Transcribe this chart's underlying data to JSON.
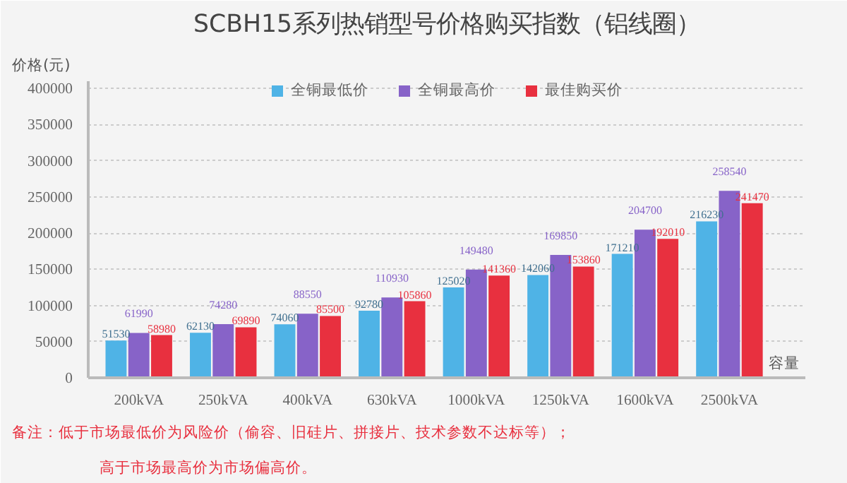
{
  "chart_data": {
    "type": "bar",
    "title": "SCBH15系列热销型号价格购买指数（铝线圈）",
    "xlabel": "容量",
    "ylabel": "价格(元)",
    "categories": [
      "200kVA",
      "250kVA",
      "400kVA",
      "630kVA",
      "1000kVA",
      "1250kVA",
      "1600kVA",
      "2500kVA"
    ],
    "series": [
      {
        "name": "全铜最低价",
        "color": "#4fb3e6",
        "values": [
          51530,
          62130,
          74060,
          92780,
          125020,
          142060,
          171210,
          216230
        ]
      },
      {
        "name": "全铜最高价",
        "color": "#8763c8",
        "values": [
          61990,
          74280,
          88550,
          110930,
          149480,
          169850,
          204700,
          258540
        ]
      },
      {
        "name": "最佳购买价",
        "color": "#e8303f",
        "values": [
          58980,
          69890,
          85500,
          105860,
          141360,
          153860,
          192010,
          241470
        ]
      }
    ],
    "ylim": [
      0,
      410000
    ],
    "yticks": [
      0,
      50000,
      100000,
      150000,
      200000,
      250000,
      300000,
      350000,
      400000
    ],
    "grid": "y",
    "legend": "top",
    "data_labels": true,
    "annotations": [
      "备注：低于市场最低价为风险价（偷容、旧硅片、拼接片、技术参数不达标等）；",
      "高于市场最高价为市场偏高价。"
    ]
  }
}
